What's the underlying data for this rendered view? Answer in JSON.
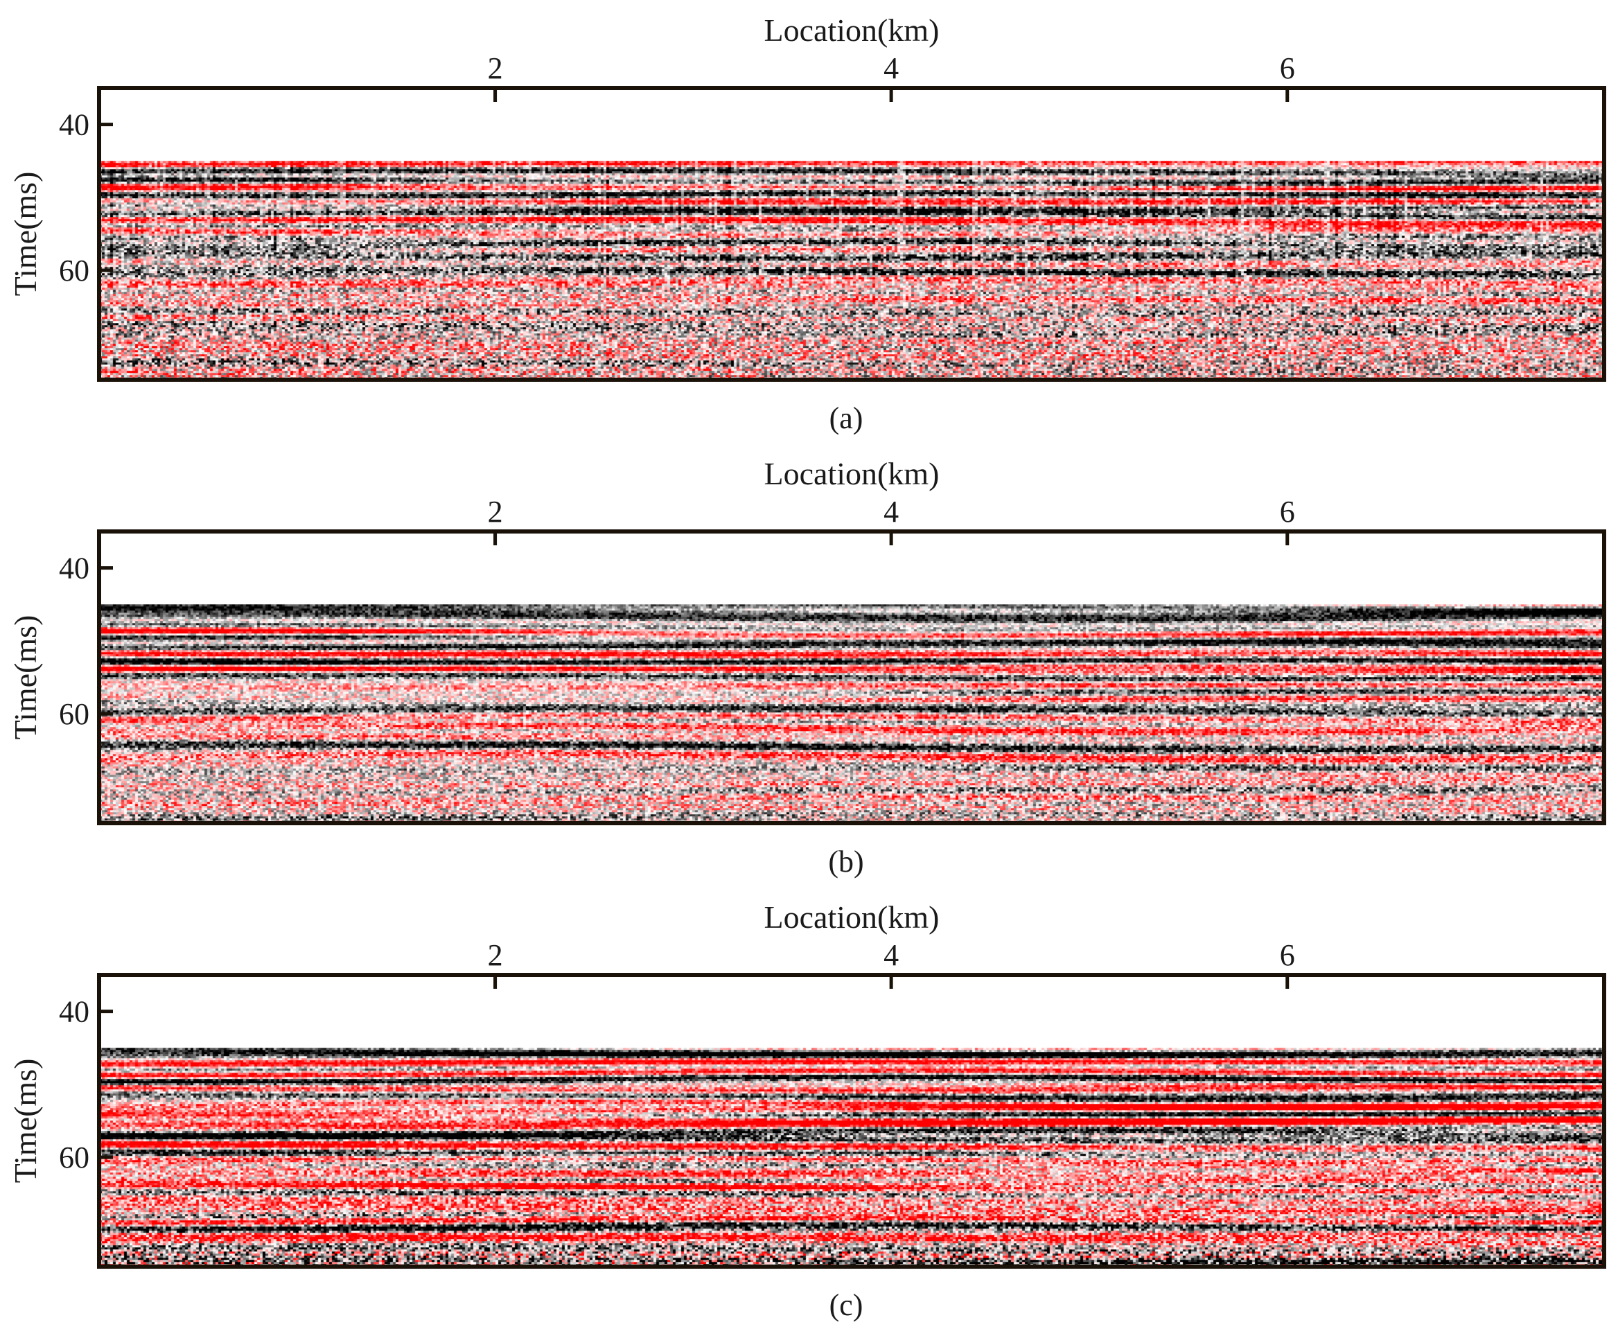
{
  "figure": {
    "panels": [
      {
        "caption": "(a)",
        "style": "raw"
      },
      {
        "caption": "(b)",
        "style": "smooth"
      },
      {
        "caption": "(c)",
        "style": "denoised"
      }
    ]
  },
  "chart_data": [
    {
      "type": "heatmap",
      "title": "",
      "xlabel": "Location(km)",
      "ylabel": "Time(ms)",
      "xticks": [
        2,
        4,
        6
      ],
      "yticks": [
        40,
        60
      ],
      "xlim": [
        0,
        7.6
      ],
      "ylim": [
        35,
        75
      ],
      "data_onset_time": 45,
      "caption": "(a)",
      "colormap": [
        "#000000",
        "#ffffff",
        "#ff0000"
      ]
    },
    {
      "type": "heatmap",
      "title": "",
      "xlabel": "Location(km)",
      "ylabel": "Time(ms)",
      "xticks": [
        2,
        4,
        6
      ],
      "yticks": [
        40,
        60
      ],
      "xlim": [
        0,
        7.6
      ],
      "ylim": [
        35,
        75
      ],
      "data_onset_time": 45,
      "caption": "(b)",
      "colormap": [
        "#000000",
        "#ffffff",
        "#ff0000"
      ]
    },
    {
      "type": "heatmap",
      "title": "",
      "xlabel": "Location(km)",
      "ylabel": "Time(ms)",
      "xticks": [
        2,
        4,
        6
      ],
      "yticks": [
        40,
        60
      ],
      "xlim": [
        0,
        7.6
      ],
      "ylim": [
        35,
        75
      ],
      "data_onset_time": 45,
      "caption": "(c)",
      "colormap": [
        "#000000",
        "#ffffff",
        "#ff0000"
      ]
    }
  ]
}
